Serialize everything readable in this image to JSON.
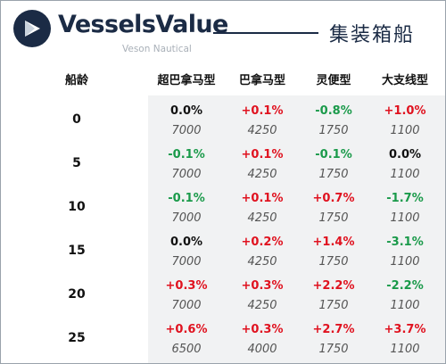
{
  "header": {
    "brand": "VesselsValue",
    "brand_sub": "Veson Nautical",
    "title": "集装箱船"
  },
  "table": {
    "corner_label": "船龄",
    "columns": [
      "超巴拿马型",
      "巴拿马型",
      "灵便型",
      "大支线型"
    ],
    "rows": [
      {
        "age": "0",
        "cells": [
          {
            "change": "0.0%",
            "count": "7000",
            "trend": "zero"
          },
          {
            "change": "+0.1%",
            "count": "4250",
            "trend": "pos"
          },
          {
            "change": "-0.8%",
            "count": "1750",
            "trend": "neg"
          },
          {
            "change": "+1.0%",
            "count": "1100",
            "trend": "pos"
          }
        ]
      },
      {
        "age": "5",
        "cells": [
          {
            "change": "-0.1%",
            "count": "7000",
            "trend": "neg"
          },
          {
            "change": "+0.1%",
            "count": "4250",
            "trend": "pos"
          },
          {
            "change": "-0.1%",
            "count": "1750",
            "trend": "neg"
          },
          {
            "change": "0.0%",
            "count": "1100",
            "trend": "zero"
          }
        ]
      },
      {
        "age": "10",
        "cells": [
          {
            "change": "-0.1%",
            "count": "7000",
            "trend": "neg"
          },
          {
            "change": "+0.1%",
            "count": "4250",
            "trend": "pos"
          },
          {
            "change": "+0.7%",
            "count": "1750",
            "trend": "pos"
          },
          {
            "change": "-1.7%",
            "count": "1100",
            "trend": "neg"
          }
        ]
      },
      {
        "age": "15",
        "cells": [
          {
            "change": "0.0%",
            "count": "7000",
            "trend": "zero"
          },
          {
            "change": "+0.2%",
            "count": "4250",
            "trend": "pos"
          },
          {
            "change": "+1.4%",
            "count": "1750",
            "trend": "pos"
          },
          {
            "change": "-3.1%",
            "count": "1100",
            "trend": "neg"
          }
        ]
      },
      {
        "age": "20",
        "cells": [
          {
            "change": "+0.3%",
            "count": "7000",
            "trend": "pos"
          },
          {
            "change": "+0.3%",
            "count": "4250",
            "trend": "pos"
          },
          {
            "change": "+2.2%",
            "count": "1750",
            "trend": "pos"
          },
          {
            "change": "-2.2%",
            "count": "1100",
            "trend": "neg"
          }
        ]
      },
      {
        "age": "25",
        "cells": [
          {
            "change": "+0.6%",
            "count": "6500",
            "trend": "pos"
          },
          {
            "change": "+0.3%",
            "count": "4000",
            "trend": "pos"
          },
          {
            "change": "+2.7%",
            "count": "1750",
            "trend": "pos"
          },
          {
            "change": "+3.7%",
            "count": "1100",
            "trend": "pos"
          }
        ]
      }
    ]
  }
}
